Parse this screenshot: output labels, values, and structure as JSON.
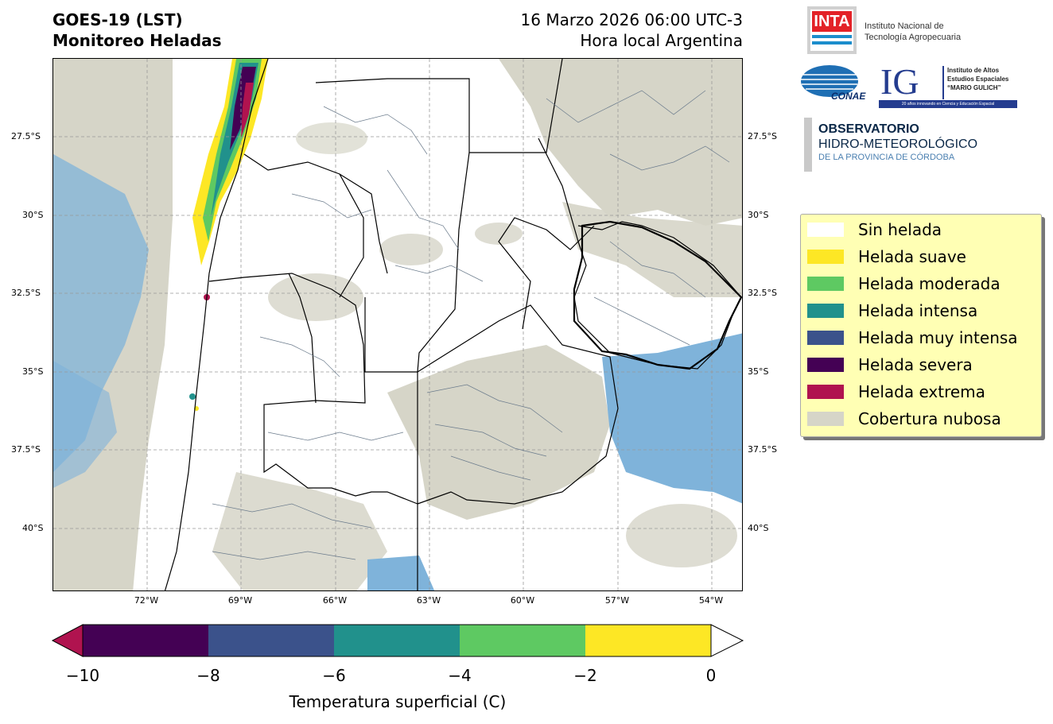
{
  "header": {
    "title_line1": "GOES-19 (LST)",
    "title_line2": "Monitoreo Heladas",
    "date_line": "16 Marzo 2026 06:00 UTC-3",
    "local_line": "Hora local Argentina"
  },
  "map": {
    "lat_labels": [
      "27.5°S",
      "30°S",
      "32.5°S",
      "35°S",
      "37.5°S",
      "40°S"
    ],
    "lon_labels": [
      "72°W",
      "69°W",
      "66°W",
      "63°W",
      "60°W",
      "57°W",
      "54°W"
    ],
    "colors": {
      "cloud": "#d6d5c8",
      "land": "#ffffff",
      "water": "#7fb3da",
      "border": "#000000",
      "dept_line": "#6b7b8c"
    }
  },
  "logos": {
    "inta_mark": "INTA",
    "inta_line1": "Instituto Nacional de",
    "inta_line2": "Tecnología Agropecuaria",
    "conae": "CONAE",
    "ig_mark": "IG",
    "ig_line1": "Instituto de Altos",
    "ig_line2": "Estudios Espaciales",
    "ig_line3": "“MARIO GULICH”",
    "ig_tagline": "20 años innovando en Ciencia y Educación Espacial",
    "obs_line1": "OBSERVATORIO",
    "obs_line2": "HIDRO-METEOROLÓGICO",
    "obs_line3": "DE LA PROVINCIA DE CÓRDOBA"
  },
  "legend": {
    "items": [
      {
        "label": "Sin helada",
        "color": "#ffffff"
      },
      {
        "label": "Helada suave",
        "color": "#fde725"
      },
      {
        "label": "Helada moderada",
        "color": "#5ec962"
      },
      {
        "label": "Helada intensa",
        "color": "#21918c"
      },
      {
        "label": "Helada muy intensa",
        "color": "#3b528b"
      },
      {
        "label": "Helada severa",
        "color": "#440154"
      },
      {
        "label": "Helada extrema",
        "color": "#b0134f"
      },
      {
        "label": "Cobertura nubosa",
        "color": "#d6d5c8"
      }
    ]
  },
  "colorbar": {
    "ticks": [
      "−10",
      "−8",
      "−6",
      "−4",
      "−2",
      "0"
    ],
    "title": "Temperatura superficial (C)",
    "segment_colors": [
      "#440154",
      "#3b528b",
      "#21918c",
      "#5ec962",
      "#fde725"
    ],
    "under_color": "#b0134f",
    "over_color": "#ffffff"
  }
}
